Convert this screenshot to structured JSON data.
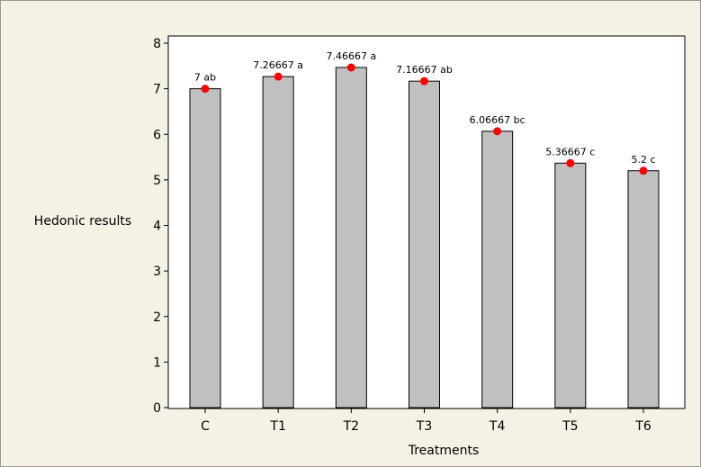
{
  "chart_data": {
    "type": "bar",
    "title": "",
    "xlabel": "Treatments",
    "ylabel": "Hedonic results",
    "categories": [
      "C",
      "T1",
      "T2",
      "T3",
      "T4",
      "T5",
      "T6"
    ],
    "values": [
      7,
      7.26667,
      7.46667,
      7.16667,
      6.06667,
      5.36667,
      5.2
    ],
    "point_labels": [
      "7 ab",
      "7.26667 a",
      "7.46667 a",
      "7.16667 ab",
      "6.06667 bc",
      "5.36667 c",
      "5.2 c"
    ],
    "ylim": [
      0,
      8
    ],
    "yticks": [
      "0",
      "1",
      "2",
      "3",
      "4",
      "5",
      "6",
      "7",
      "8"
    ],
    "grid": false,
    "colors": {
      "bar_fill": "#c0c0c0",
      "bar_stroke": "#000000",
      "point": "#ff0000",
      "background": "#f5f1e5",
      "plot_background": "#ffffff"
    }
  }
}
